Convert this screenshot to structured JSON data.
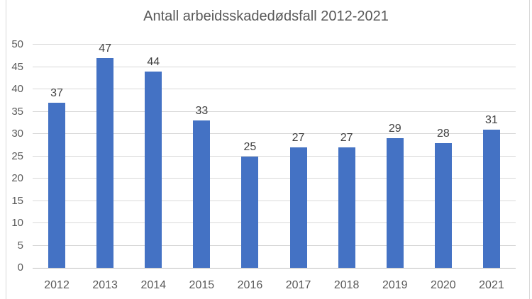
{
  "chart_data": {
    "type": "bar",
    "title": "Antall arbeidsskadedødsfall 2012-2021",
    "categories": [
      "2012",
      "2013",
      "2014",
      "2015",
      "2016",
      "2017",
      "2018",
      "2019",
      "2020",
      "2021"
    ],
    "values": [
      37,
      47,
      44,
      33,
      25,
      27,
      27,
      29,
      28,
      31
    ],
    "data_labels_shown": true,
    "xlabel": "",
    "ylabel": "",
    "ylim": [
      0,
      50
    ],
    "yticks": [
      0,
      5,
      10,
      15,
      20,
      25,
      30,
      35,
      40,
      45,
      50
    ],
    "grid": true,
    "legend": null,
    "colors": {
      "bar": "#4472C4",
      "gridline": "#D9D9D9",
      "axis_line": "#BFBFBF",
      "title_text": "#595959",
      "tick_label_text": "#595959",
      "data_label_text": "#404040",
      "frame_border": "#D9D9D9",
      "background": "#FFFFFF"
    }
  }
}
